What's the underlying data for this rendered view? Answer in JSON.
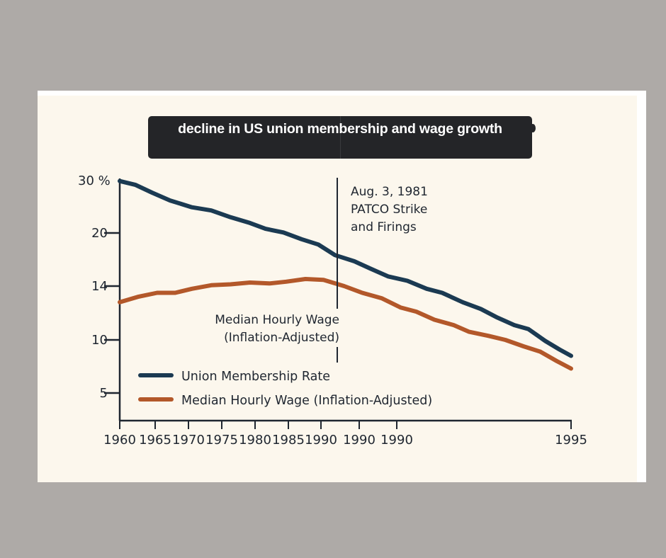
{
  "title": "decline in US union membership and wage growth",
  "colors": {
    "background": "#aeaaa7",
    "card": "#fcf7ed",
    "title_box": "#242528",
    "axis": "#1f2630",
    "union": "#1b3a52",
    "wage": "#b3582a"
  },
  "chart_data": {
    "type": "line",
    "title": "decline in US union membership and wage growth",
    "xlabel": "",
    "ylabel": "",
    "x_tick_labels": [
      "1960",
      "1965",
      "1970",
      "1975",
      "1980",
      "1985",
      "1990",
      "1990",
      "1990",
      "1995"
    ],
    "y_tick_labels": [
      "30 %",
      "20",
      "14",
      "10",
      "5"
    ],
    "y_ticks": [
      30,
      20,
      14,
      10,
      5
    ],
    "xlim": [
      1960,
      1995
    ],
    "grid": false,
    "legend_position": "bottom-left",
    "series": [
      {
        "name": "Union Membership Rate",
        "color": "#1b3a52",
        "x": [
          1960,
          1961.2,
          1962.5,
          1963.9,
          1965.6,
          1967.1,
          1968.6,
          1970.1,
          1971.3,
          1972.7,
          1974.1,
          1975.4,
          1976.7,
          1978.2,
          1979.4,
          1980.8,
          1982.3,
          1983.8,
          1985.0,
          1986.6,
          1988.0,
          1989.2,
          1990.6,
          1991.7,
          1993.0,
          1994.1,
          1995
        ],
        "values": [
          29.9,
          29.2,
          27.7,
          26.2,
          24.9,
          24.3,
          23.0,
          21.9,
          20.8,
          20.1,
          19.3,
          18.7,
          17.5,
          16.8,
          16.0,
          15.1,
          14.6,
          13.8,
          13.5,
          12.8,
          12.3,
          11.7,
          11.1,
          10.8,
          9.9,
          9.1,
          8.5
        ]
      },
      {
        "name": "Median Hourly Wage (Inflation-Adjusted)",
        "color": "#b3582a",
        "x": [
          1960,
          1961.4,
          1962.9,
          1964.3,
          1965.6,
          1967.1,
          1968.6,
          1970.1,
          1971.6,
          1972.9,
          1974.4,
          1975.8,
          1977.4,
          1978.8,
          1980.3,
          1981.8,
          1983.0,
          1984.4,
          1985.9,
          1987.1,
          1988.6,
          1989.9,
          1991.3,
          1992.6,
          1993.9,
          1995
        ],
        "values": [
          12.8,
          13.2,
          13.5,
          13.5,
          13.8,
          14.1,
          14.2,
          14.4,
          14.3,
          14.5,
          14.8,
          14.7,
          14.0,
          13.5,
          13.1,
          12.4,
          12.1,
          11.5,
          11.1,
          10.6,
          10.3,
          10.0,
          9.4,
          8.9,
          8.0,
          7.3
        ]
      }
    ],
    "annotations": [
      {
        "x": 1981.6,
        "lines": [
          "Aug. 3, 1981",
          "PATCO Strike",
          "and Firings"
        ]
      },
      {
        "lines": [
          "Median Hourly Wage",
          "(Inflation-Adjusted)"
        ]
      }
    ]
  }
}
